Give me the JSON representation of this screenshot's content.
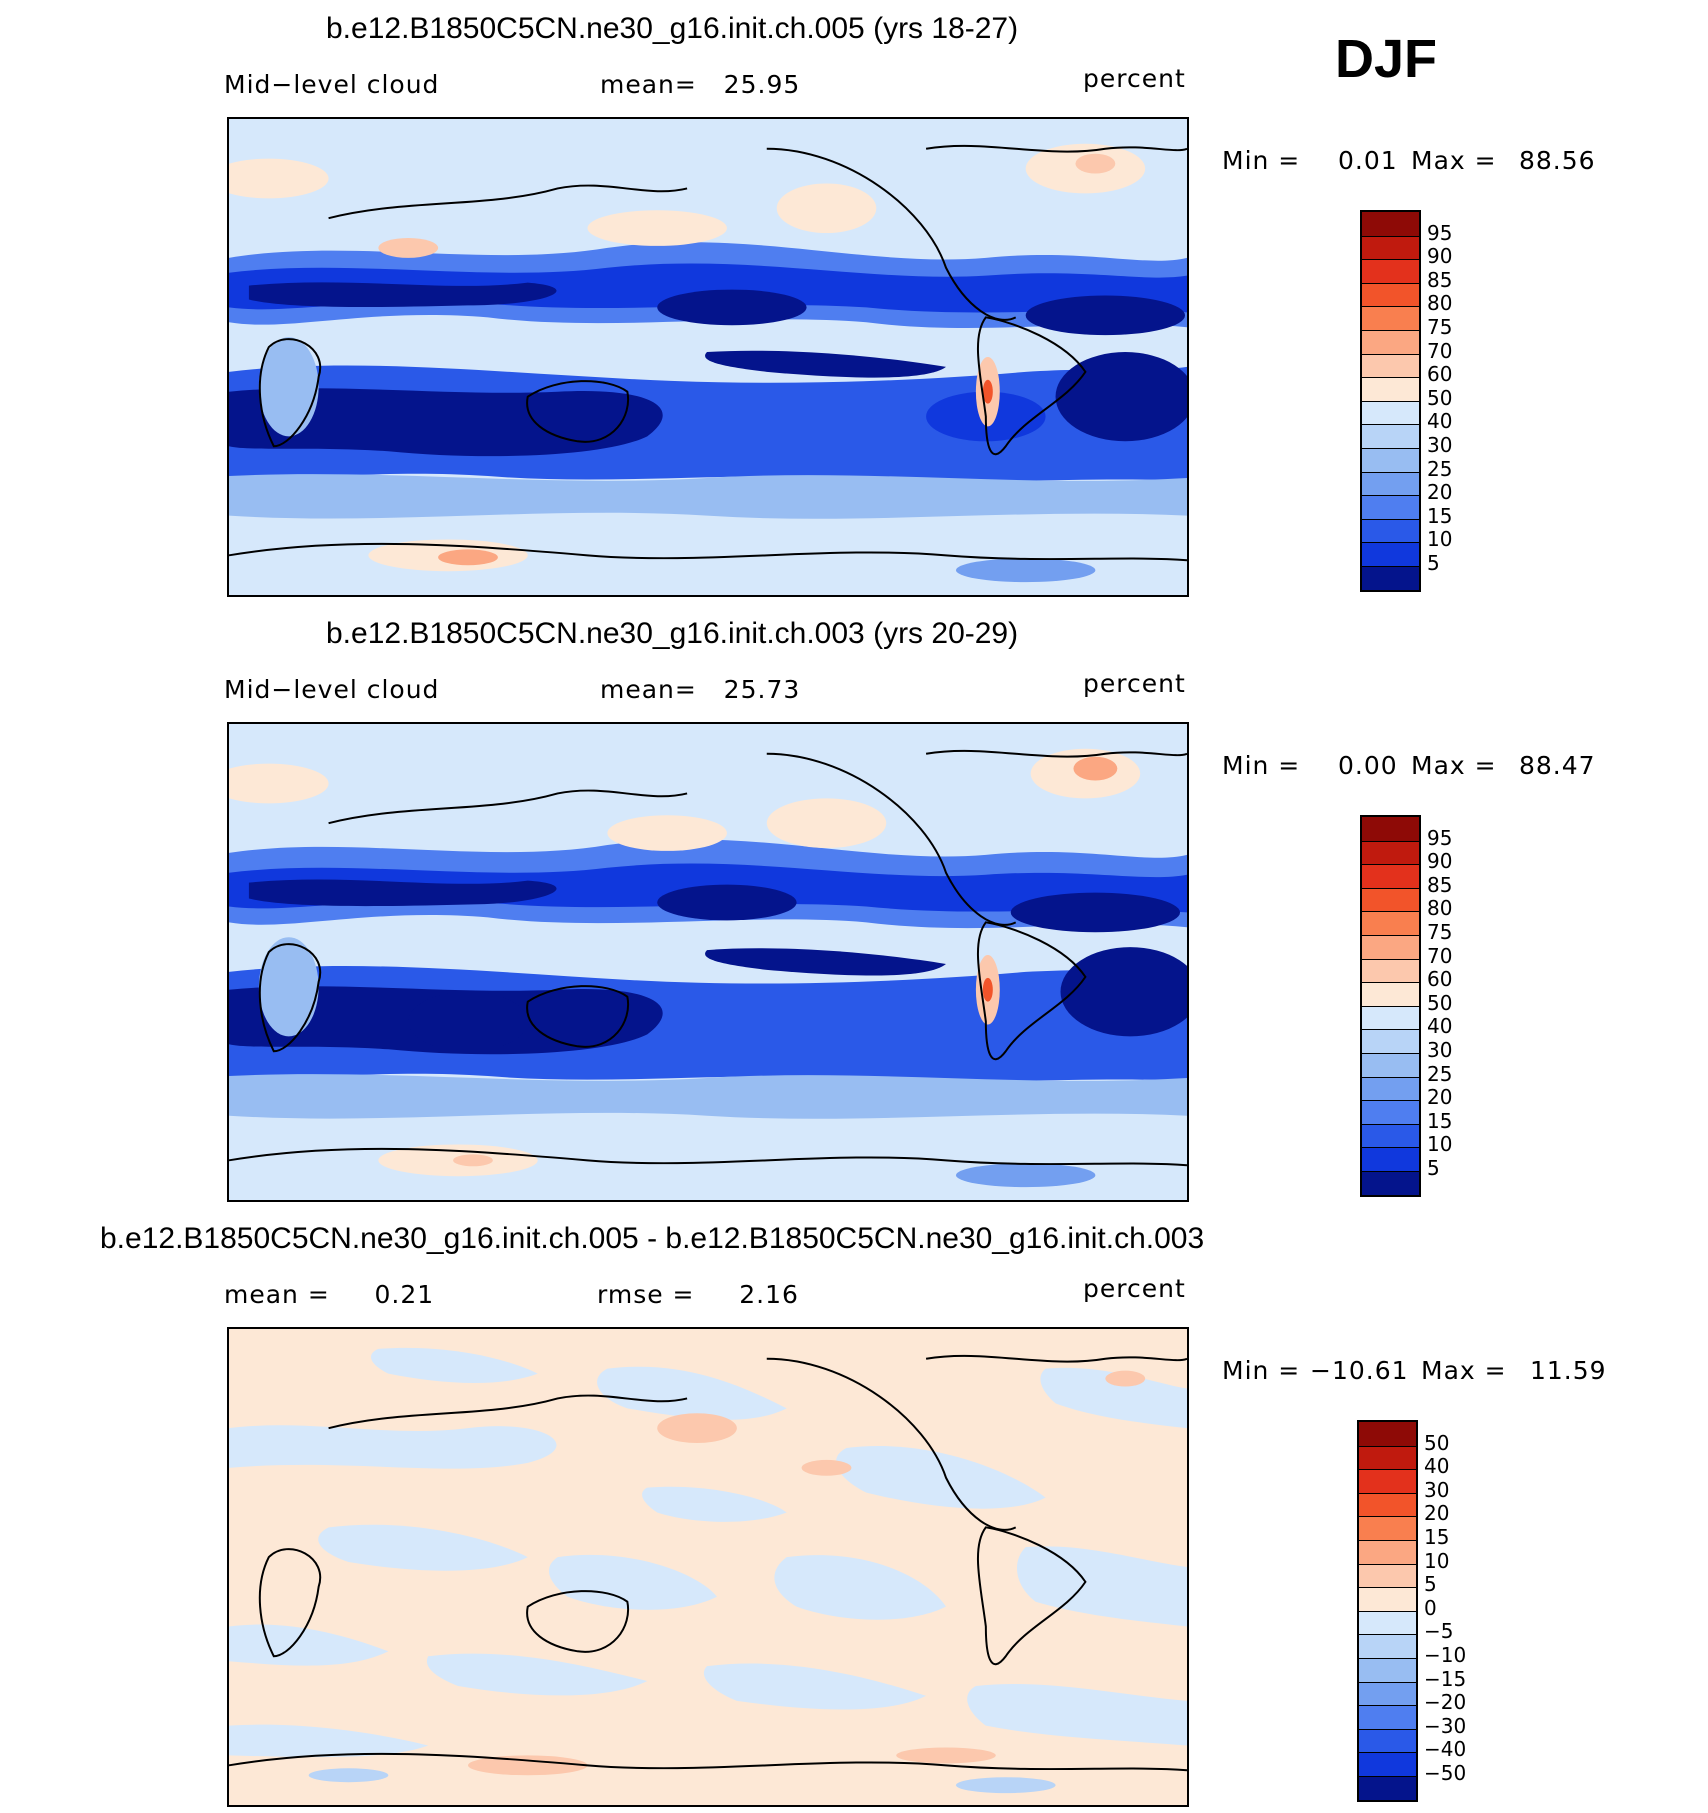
{
  "season": "DJF",
  "colors": {
    "warm": [
      "#fde8d6",
      "#fcc8ad",
      "#fba782",
      "#f97f4f",
      "#f2542a",
      "#e3311c",
      "#c01a0e",
      "#8e0a06"
    ],
    "cool": [
      "#d6e8fb",
      "#b8d4f7",
      "#98bdf2",
      "#739ff0",
      "#4f7ef0",
      "#2a59e8",
      "#1038dd",
      "#0722b2",
      "#04148c"
    ],
    "land_outline": "#000000"
  },
  "chart_data": [
    {
      "type": "heatmap",
      "title": "b.e12.B1850C5CN.ne30_g16.init.ch.005 (yrs 18-27)",
      "left_label": "Mid−level cloud",
      "center_label": "mean=   25.95",
      "units": "percent",
      "min_label": "Min =",
      "min_value": "0.01",
      "max_label": "Max =",
      "max_value": "88.56",
      "levels": [
        "95",
        "90",
        "85",
        "80",
        "75",
        "70",
        "60",
        "50",
        "40",
        "30",
        "25",
        "20",
        "15",
        "10",
        "5"
      ],
      "level_colors": [
        "#8e0a06",
        "#c01a0e",
        "#e3311c",
        "#f2542a",
        "#f97f4f",
        "#fba782",
        "#fcc8ad",
        "#fde8d6",
        "#d6e8fb",
        "#b8d4f7",
        "#98bdf2",
        "#739ff0",
        "#4f7ef0",
        "#2a59e8",
        "#1038dd",
        "#04148c"
      ]
    },
    {
      "type": "heatmap",
      "title": "b.e12.B1850C5CN.ne30_g16.init.ch.003 (yrs 20-29)",
      "left_label": "Mid−level cloud",
      "center_label": "mean=   25.73",
      "units": "percent",
      "min_label": "Min =",
      "min_value": "0.00",
      "max_label": "Max =",
      "max_value": "88.47",
      "levels": [
        "95",
        "90",
        "85",
        "80",
        "75",
        "70",
        "60",
        "50",
        "40",
        "30",
        "25",
        "20",
        "15",
        "10",
        "5"
      ],
      "level_colors": [
        "#8e0a06",
        "#c01a0e",
        "#e3311c",
        "#f2542a",
        "#f97f4f",
        "#fba782",
        "#fcc8ad",
        "#fde8d6",
        "#d6e8fb",
        "#b8d4f7",
        "#98bdf2",
        "#739ff0",
        "#4f7ef0",
        "#2a59e8",
        "#1038dd",
        "#04148c"
      ]
    },
    {
      "type": "heatmap",
      "title": "b.e12.B1850C5CN.ne30_g16.init.ch.005 - b.e12.B1850C5CN.ne30_g16.init.ch.003",
      "left_label": "mean =     0.21",
      "center_label": "rmse =     2.16",
      "units": "percent",
      "min_label": "Min =",
      "min_value": "−10.61",
      "max_label": "Max =",
      "max_value": "11.59",
      "levels": [
        "50",
        "40",
        "30",
        "20",
        "15",
        "10",
        "5",
        "0",
        "−5",
        "−10",
        "−15",
        "−20",
        "−30",
        "−40",
        "−50"
      ],
      "level_colors": [
        "#8e0a06",
        "#c01a0e",
        "#e3311c",
        "#f2542a",
        "#f97f4f",
        "#fba782",
        "#fcc8ad",
        "#fde8d6",
        "#d6e8fb",
        "#b8d4f7",
        "#98bdf2",
        "#739ff0",
        "#4f7ef0",
        "#2a59e8",
        "#1038dd",
        "#04148c"
      ]
    }
  ]
}
